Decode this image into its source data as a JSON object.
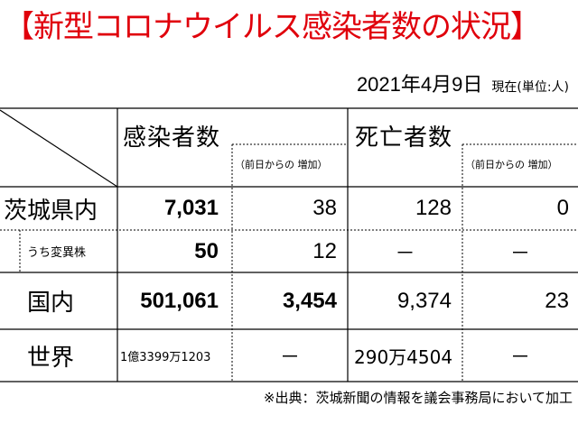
{
  "title": "【新型コロナウイルス感染者数の状況】",
  "date": "2021年4月9日",
  "unit_note": "現在(単位:人)",
  "headers": {
    "infections": "感染者数",
    "infections_increase": "（前日からの 増加）",
    "deaths": "死亡者数",
    "deaths_increase": "（前日からの 増加）"
  },
  "rows": [
    {
      "label": "茨城県内",
      "infections": "7,031",
      "infections_increase": "38",
      "deaths": "128",
      "deaths_increase": "0"
    },
    {
      "label": "うち変異株",
      "infections": "50",
      "infections_increase": "12",
      "deaths": "－",
      "deaths_increase": "－"
    },
    {
      "label": "国内",
      "infections": "501,061",
      "infections_increase": "3,454",
      "deaths": "9,374",
      "deaths_increase": "23"
    },
    {
      "label": "世界",
      "infections": "1億3399万1203",
      "infections_increase": "－",
      "deaths": "290万4504",
      "deaths_increase": "－"
    }
  ],
  "footer": "※出典：茨城新聞の情報を議会事務局において加工"
}
